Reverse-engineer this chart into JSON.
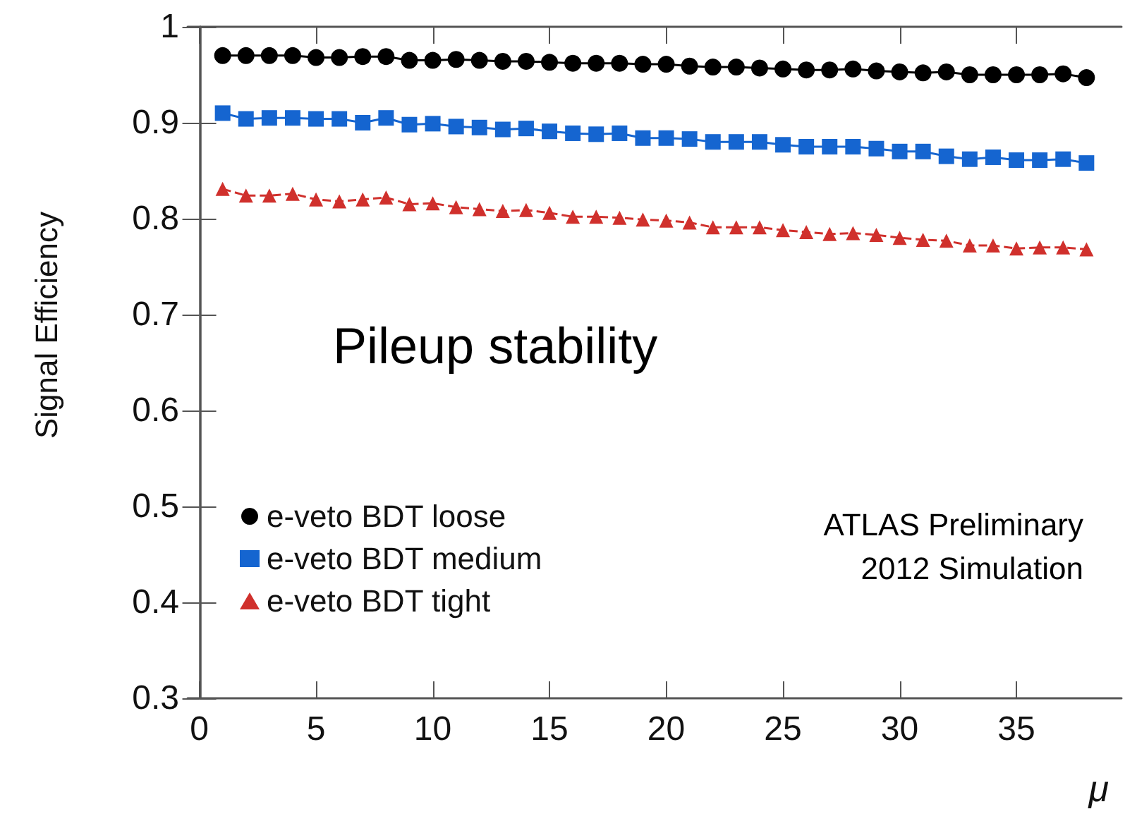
{
  "chart_data": {
    "type": "line",
    "ylabel": "Signal Efficiency",
    "xlabel": "μ",
    "annotations": [
      "Pileup stability",
      "ATLAS Preliminary",
      "2012 Simulation"
    ],
    "x": [
      1,
      2,
      3,
      4,
      5,
      6,
      7,
      8,
      9,
      10,
      11,
      12,
      13,
      14,
      15,
      16,
      17,
      18,
      19,
      20,
      21,
      22,
      23,
      24,
      25,
      26,
      27,
      28,
      29,
      30,
      31,
      32,
      33,
      34,
      35,
      36,
      37,
      38
    ],
    "series": [
      {
        "name": "e-veto BDT loose",
        "color": "#000000",
        "marker": "circle",
        "line_style": "solid",
        "values": [
          0.97,
          0.97,
          0.97,
          0.97,
          0.968,
          0.968,
          0.969,
          0.969,
          0.965,
          0.965,
          0.966,
          0.965,
          0.964,
          0.964,
          0.963,
          0.962,
          0.962,
          0.962,
          0.961,
          0.961,
          0.959,
          0.958,
          0.958,
          0.957,
          0.956,
          0.955,
          0.955,
          0.956,
          0.954,
          0.953,
          0.952,
          0.953,
          0.95,
          0.95,
          0.95,
          0.95,
          0.951,
          0.947
        ]
      },
      {
        "name": "e-veto BDT medium",
        "color": "#1565d0",
        "marker": "square",
        "line_style": "solid",
        "values": [
          0.91,
          0.904,
          0.905,
          0.905,
          0.904,
          0.904,
          0.9,
          0.905,
          0.898,
          0.899,
          0.896,
          0.895,
          0.893,
          0.894,
          0.891,
          0.889,
          0.888,
          0.889,
          0.884,
          0.884,
          0.883,
          0.88,
          0.88,
          0.88,
          0.877,
          0.875,
          0.875,
          0.875,
          0.873,
          0.87,
          0.87,
          0.865,
          0.862,
          0.864,
          0.861,
          0.861,
          0.862,
          0.858
        ]
      },
      {
        "name": "e-veto BDT tight",
        "color": "#d0302c",
        "marker": "triangle",
        "line_style": "dashed",
        "values": [
          0.831,
          0.824,
          0.824,
          0.826,
          0.82,
          0.818,
          0.82,
          0.822,
          0.815,
          0.816,
          0.812,
          0.81,
          0.808,
          0.809,
          0.806,
          0.802,
          0.802,
          0.801,
          0.799,
          0.798,
          0.796,
          0.791,
          0.791,
          0.791,
          0.788,
          0.786,
          0.784,
          0.785,
          0.783,
          0.78,
          0.778,
          0.777,
          0.772,
          0.772,
          0.769,
          0.77,
          0.77,
          0.768
        ]
      }
    ],
    "xlim": [
      -0.5,
      39.5
    ],
    "xticks": [
      0,
      5,
      10,
      15,
      20,
      25,
      30,
      35
    ],
    "ylim": [
      0.3,
      1
    ],
    "yticks": [
      0.3,
      0.4,
      0.5,
      0.6,
      0.7,
      0.8,
      0.9,
      1
    ],
    "grid": false,
    "legend": "bottom left"
  }
}
